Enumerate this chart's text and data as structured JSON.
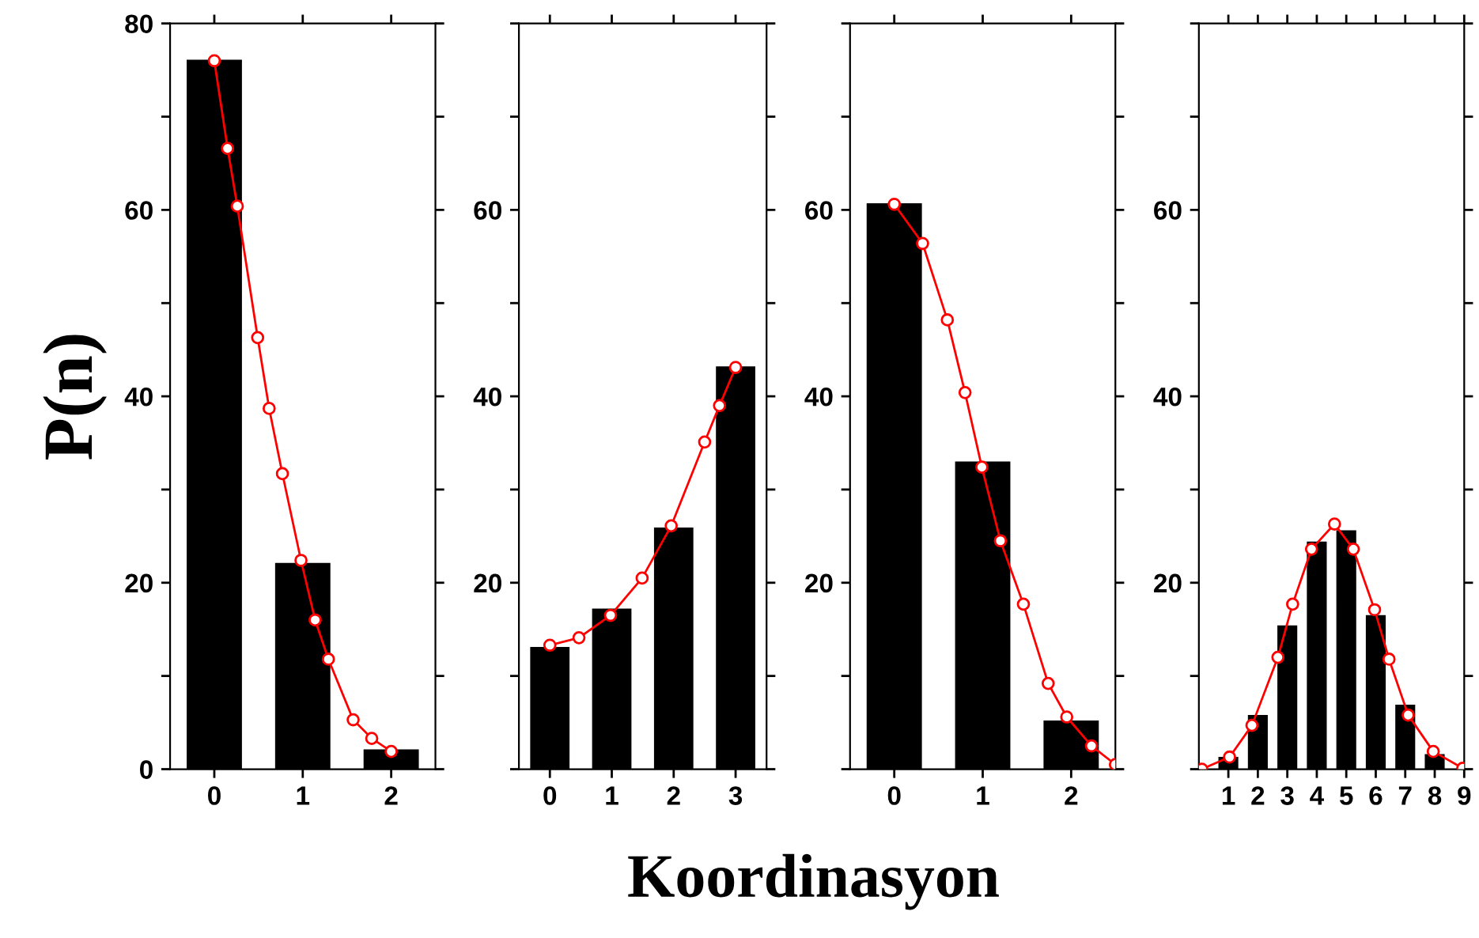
{
  "chart_data": [
    {
      "type": "bar",
      "ylabel": "P(n)",
      "xlabel": "Koordinasyon",
      "x": [
        0,
        1,
        2
      ],
      "xlim": [
        -0.5,
        2.5
      ],
      "xticks": [
        0,
        1,
        2
      ],
      "ylim": [
        0,
        80
      ],
      "yticks": [
        0,
        {
          "value": 10,
          "label": null
        },
        20,
        {
          "value": 30,
          "label": null
        },
        40,
        {
          "value": 50,
          "label": null
        },
        60,
        {
          "value": 70,
          "label": null
        },
        80
      ],
      "grid": false,
      "legend": false,
      "series": [
        {
          "color": "#000000",
          "values": [
            76,
            22,
            2
          ]
        },
        {
          "type": "line",
          "color": "#ff0000",
          "marker": "circle",
          "line_style": "solid",
          "x": [
            0,
            0.15,
            0.26,
            0.49,
            0.62,
            0.77,
            0.98,
            1.14,
            1.29,
            1.57,
            1.78,
            2.0
          ],
          "values": [
            76,
            66.6,
            60.4,
            46.3,
            38.7,
            31.7,
            22.4,
            16.0,
            11.8,
            5.3,
            3.3,
            1.9
          ]
        }
      ]
    },
    {
      "type": "bar",
      "x": [
        0,
        1,
        2,
        3
      ],
      "xlim": [
        -0.5,
        3.5
      ],
      "xticks": [
        0,
        1,
        2,
        3
      ],
      "ylim": [
        0,
        80
      ],
      "yticks": [
        {
          "value": 0,
          "label": null
        },
        {
          "value": 10,
          "label": null
        },
        20,
        {
          "value": 30,
          "label": null
        },
        40,
        {
          "value": 50,
          "label": null
        },
        60,
        {
          "value": 70,
          "label": null
        },
        {
          "value": 80,
          "label": null
        }
      ],
      "grid": false,
      "legend": false,
      "series": [
        {
          "color": "#000000",
          "values": [
            13,
            17.1,
            25.8,
            43.1
          ]
        },
        {
          "type": "line",
          "color": "#ff0000",
          "marker": "circle",
          "line_style": "solid",
          "x": [
            0,
            0.47,
            0.98,
            1.49,
            1.96,
            2.5,
            2.74,
            3.0
          ],
          "values": [
            13.3,
            14.1,
            16.5,
            20.5,
            26.1,
            35.1,
            39.0,
            43.1
          ]
        }
      ]
    },
    {
      "type": "bar",
      "x": [
        0,
        1,
        2
      ],
      "xlim": [
        -0.5,
        2.5
      ],
      "xticks": [
        0,
        1,
        2
      ],
      "ylim": [
        0,
        80
      ],
      "yticks": [
        {
          "value": 0,
          "label": null
        },
        {
          "value": 10,
          "label": null
        },
        20,
        {
          "value": 30,
          "label": null
        },
        40,
        {
          "value": 50,
          "label": null
        },
        60,
        {
          "value": 70,
          "label": null
        },
        {
          "value": 80,
          "label": null
        }
      ],
      "grid": false,
      "legend": false,
      "series": [
        {
          "color": "#000000",
          "values": [
            60.6,
            32.9,
            5.1
          ]
        },
        {
          "type": "line",
          "color": "#ff0000",
          "marker": "circle",
          "line_style": "solid",
          "x": [
            0,
            0.32,
            0.6,
            0.8,
            0.99,
            1.2,
            1.46,
            1.74,
            1.95,
            2.23,
            2.5
          ],
          "values": [
            60.6,
            56.4,
            48.2,
            40.4,
            32.4,
            24.5,
            17.7,
            9.2,
            5.6,
            2.5,
            0.5
          ]
        }
      ]
    },
    {
      "type": "bar",
      "x": [
        1,
        2,
        3,
        4,
        5,
        6,
        7,
        8
      ],
      "xlim": [
        0,
        9
      ],
      "xticks": [
        1,
        2,
        3,
        4,
        5,
        6,
        7,
        8,
        9
      ],
      "ylim": [
        0,
        80
      ],
      "yticks": [
        {
          "value": 0,
          "label": null
        },
        {
          "value": 10,
          "label": null
        },
        20,
        {
          "value": 30,
          "label": null
        },
        40,
        {
          "value": 50,
          "label": null
        },
        60,
        {
          "value": 70,
          "label": null
        },
        {
          "value": 80,
          "label": null
        }
      ],
      "grid": false,
      "legend": false,
      "series": [
        {
          "color": "#000000",
          "values": [
            1.2,
            5.7,
            15.3,
            24.3,
            25.5,
            16.4,
            6.8,
            1.5
          ]
        },
        {
          "type": "line",
          "color": "#ff0000",
          "marker": "circle",
          "line_style": "solid",
          "x": [
            0.1,
            1.04,
            1.8,
            2.68,
            3.18,
            3.82,
            4.6,
            5.24,
            5.96,
            6.45,
            7.1,
            7.95,
            8.95
          ],
          "values": [
            0,
            1.3,
            4.7,
            12.0,
            17.7,
            23.6,
            26.3,
            23.6,
            17.1,
            11.8,
            5.8,
            1.9,
            0.1
          ]
        }
      ]
    }
  ]
}
